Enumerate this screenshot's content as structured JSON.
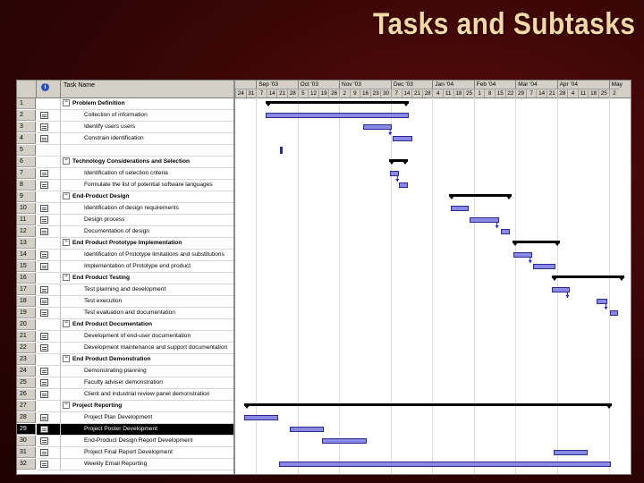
{
  "slide_title": "Tasks and Subtasks",
  "columns": {
    "id": "",
    "info": "i",
    "name": "Task Name"
  },
  "rows": [
    {
      "id": "1",
      "name": "Problem Definition",
      "summary": true
    },
    {
      "id": "2",
      "name": "Collection of information"
    },
    {
      "id": "3",
      "name": "Identify users users"
    },
    {
      "id": "4",
      "name": "Constrain identification"
    },
    {
      "id": "5",
      "name": "",
      "empty": true
    },
    {
      "id": "6",
      "name": "Technology Considerations and Selection",
      "summary": true
    },
    {
      "id": "7",
      "name": "Identification of selection criteria"
    },
    {
      "id": "8",
      "name": "Formulate the list of potential software languages"
    },
    {
      "id": "9",
      "name": "End-Product Design",
      "summary": true
    },
    {
      "id": "10",
      "name": "Identification of design requirements"
    },
    {
      "id": "11",
      "name": "Design process"
    },
    {
      "id": "12",
      "name": "Documentation of design"
    },
    {
      "id": "13",
      "name": "End Product Prototype Implementation",
      "summary": true
    },
    {
      "id": "14",
      "name": "Identification of Prototype limitations and substitutions"
    },
    {
      "id": "15",
      "name": "Implementation of Prototype end product"
    },
    {
      "id": "16",
      "name": "End Product Testing",
      "summary": true
    },
    {
      "id": "17",
      "name": "Test planning and development"
    },
    {
      "id": "18",
      "name": "Test execution"
    },
    {
      "id": "19",
      "name": "Test evaluation and documentation"
    },
    {
      "id": "20",
      "name": "End Product Documentation",
      "summary": true
    },
    {
      "id": "21",
      "name": "Development of end-user documentation"
    },
    {
      "id": "22",
      "name": "Development maintenance and support documentation"
    },
    {
      "id": "23",
      "name": "End Product Demonstration",
      "summary": true
    },
    {
      "id": "24",
      "name": "Demonstrating planning"
    },
    {
      "id": "25",
      "name": "Faculty adviser demonstration"
    },
    {
      "id": "26",
      "name": "Client and industrial review panel demonstration"
    },
    {
      "id": "27",
      "name": "Project Reporting",
      "summary": true
    },
    {
      "id": "28",
      "name": "Project Plan Development"
    },
    {
      "id": "29",
      "name": "Project Poster Development",
      "selected": true
    },
    {
      "id": "30",
      "name": "End-Product Design Report Development"
    },
    {
      "id": "31",
      "name": "Project Final Report Development"
    },
    {
      "id": "32",
      "name": "Weekly Email Reporting"
    }
  ],
  "months": [
    "Sep '03",
    "Oct '03",
    "Nov '03",
    "Dec '03",
    "Jan '04",
    "Feb '04",
    "Mar '04",
    "Apr '04",
    "May"
  ],
  "month_start_week": [
    2,
    6,
    10,
    15,
    19,
    23,
    27,
    31,
    36
  ],
  "weeks": [
    "24",
    "31",
    "7",
    "14",
    "21",
    "28",
    "5",
    "12",
    "19",
    "26",
    "2",
    "9",
    "16",
    "23",
    "30",
    "7",
    "14",
    "21",
    "28",
    "4",
    "11",
    "18",
    "25",
    "1",
    "8",
    "15",
    "22",
    "29",
    "7",
    "14",
    "21",
    "28",
    "4",
    "11",
    "18",
    "25",
    "2"
  ],
  "schedule": {
    "weeks_visible": 38,
    "tasks": [
      {
        "row": 0,
        "type": "summary",
        "start": 2.9,
        "end": 16.7
      },
      {
        "row": 1,
        "type": "bar",
        "start": 2.9,
        "end": 16.7
      },
      {
        "row": 2,
        "type": "bar",
        "start": 12.3,
        "end": 15.1
      },
      {
        "row": 3,
        "type": "bar",
        "start": 15.2,
        "end": 17.1
      },
      {
        "row": 4,
        "type": "milestone",
        "start": 4.3,
        "end": 4.5
      },
      {
        "row": 5,
        "type": "summary",
        "start": 14.8,
        "end": 16.6
      },
      {
        "row": 6,
        "type": "bar",
        "start": 14.9,
        "end": 15.8
      },
      {
        "row": 7,
        "type": "bar",
        "start": 15.8,
        "end": 16.6
      },
      {
        "row": 8,
        "type": "summary",
        "start": 20.6,
        "end": 26.6
      },
      {
        "row": 9,
        "type": "bar",
        "start": 20.8,
        "end": 22.5
      },
      {
        "row": 10,
        "type": "bar",
        "start": 22.6,
        "end": 25.4
      },
      {
        "row": 11,
        "type": "bar",
        "start": 25.6,
        "end": 26.5
      },
      {
        "row": 12,
        "type": "summary",
        "start": 26.7,
        "end": 31.3
      },
      {
        "row": 13,
        "type": "bar",
        "start": 26.8,
        "end": 28.6
      },
      {
        "row": 14,
        "type": "bar",
        "start": 28.7,
        "end": 30.9
      },
      {
        "row": 15,
        "type": "summary",
        "start": 30.5,
        "end": 37.5
      },
      {
        "row": 16,
        "type": "bar",
        "start": 30.5,
        "end": 32.2
      },
      {
        "row": 17,
        "type": "bar",
        "start": 34.8,
        "end": 35.9
      },
      {
        "row": 18,
        "type": "bar",
        "start": 36.1,
        "end": 36.9
      },
      {
        "row": 26,
        "type": "summary",
        "start": 0.9,
        "end": 36.3
      },
      {
        "row": 27,
        "type": "bar",
        "start": 0.9,
        "end": 4.1
      },
      {
        "row": 28,
        "type": "bar",
        "start": 5.3,
        "end": 8.5
      },
      {
        "row": 29,
        "type": "bar",
        "start": 8.4,
        "end": 12.7
      },
      {
        "row": 30,
        "type": "bar",
        "start": 30.7,
        "end": 34.0
      },
      {
        "row": 31,
        "type": "bar",
        "start": 4.2,
        "end": 36.2
      }
    ],
    "links": [
      {
        "from_row": 2,
        "to_row": 3
      },
      {
        "from_row": 6,
        "to_row": 7
      },
      {
        "from_row": 10,
        "to_row": 11
      },
      {
        "from_row": 13,
        "to_row": 14
      },
      {
        "from_row": 16,
        "to_row": 17
      },
      {
        "from_row": 17,
        "to_row": 18
      }
    ]
  }
}
